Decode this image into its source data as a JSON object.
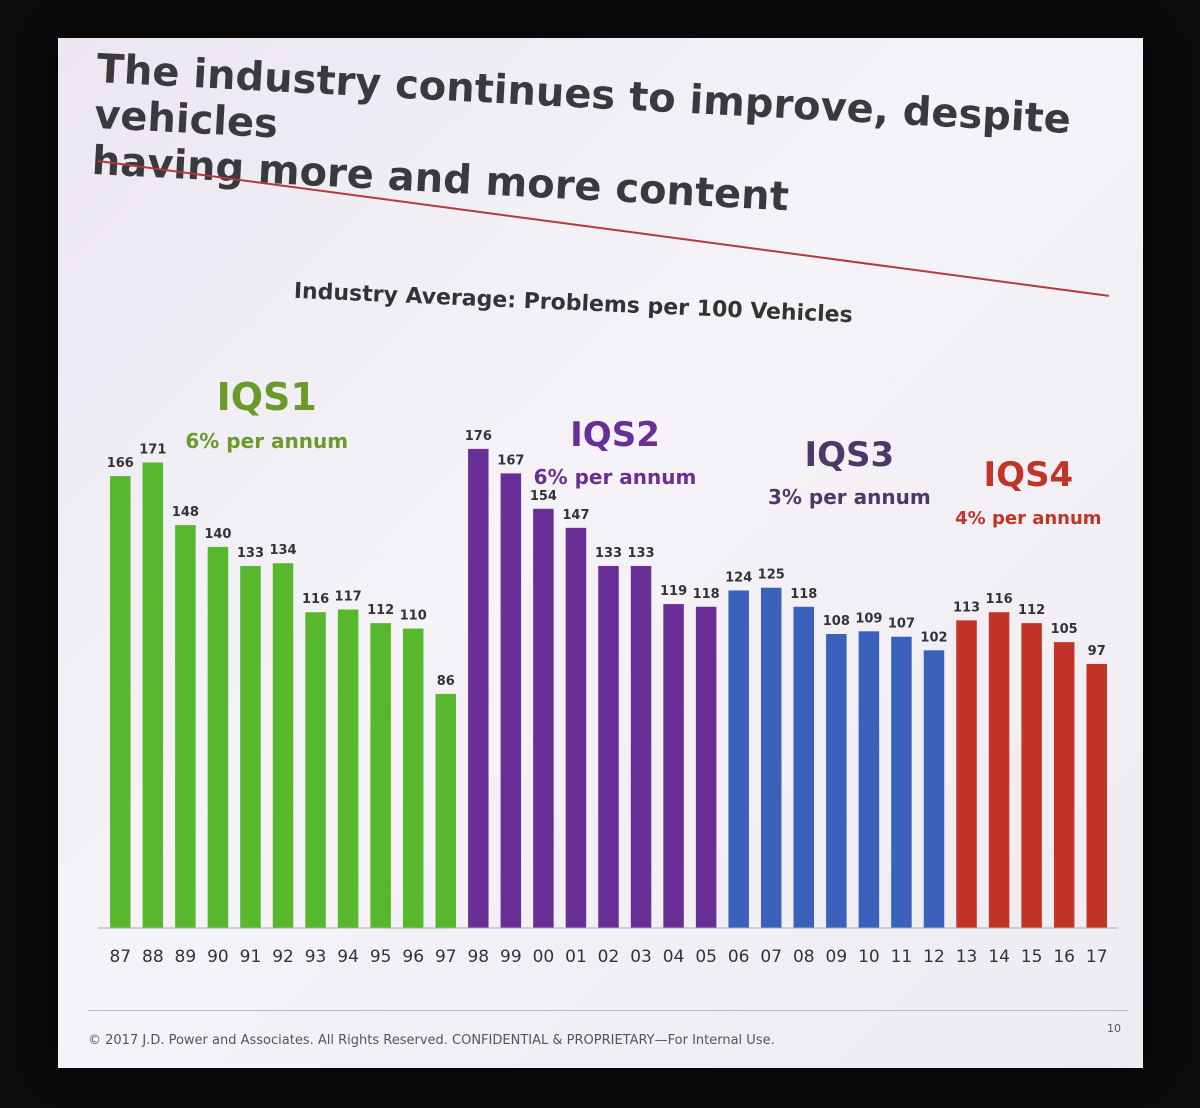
{
  "slide": {
    "headline_line1": "The industry continues to improve, despite vehicles",
    "headline_line2": "having more and more content",
    "footer": "© 2017 J.D. Power and Associates. All Rights Reserved. CONFIDENTIAL & PROPRIETARY—For Internal Use.",
    "page_number": "10"
  },
  "chart_data": {
    "type": "bar",
    "title": "Industry Average: Problems per 100 Vehicles",
    "xlabel": "",
    "ylabel": "",
    "ylim": [
      0,
      180
    ],
    "grid": false,
    "categories": [
      "87",
      "88",
      "89",
      "90",
      "91",
      "92",
      "93",
      "94",
      "95",
      "96",
      "97",
      "98",
      "99",
      "00",
      "01",
      "02",
      "03",
      "04",
      "05",
      "06",
      "07",
      "08",
      "09",
      "10",
      "11",
      "12",
      "13",
      "14",
      "15",
      "16",
      "17"
    ],
    "values": [
      166,
      171,
      148,
      140,
      133,
      134,
      116,
      117,
      112,
      110,
      86,
      176,
      167,
      154,
      147,
      133,
      133,
      119,
      118,
      124,
      125,
      118,
      108,
      109,
      107,
      102,
      113,
      116,
      112,
      105,
      97
    ],
    "groups": [
      {
        "name": "IQS1",
        "subtitle": "6% per annum",
        "from": 0,
        "to": 10,
        "color": "#57b82e",
        "label_color": "#6a9a2a"
      },
      {
        "name": "IQS2",
        "subtitle": "6% per annum",
        "from": 11,
        "to": 18,
        "color": "#6a2f96",
        "label_color": "#6a2f96"
      },
      {
        "name": "IQS3",
        "subtitle": "3% per annum",
        "from": 19,
        "to": 25,
        "color": "#3a62bb",
        "label_color": "#4a3a6a"
      },
      {
        "name": "IQS4",
        "subtitle": "4% per annum",
        "from": 26,
        "to": 30,
        "color": "#c23328",
        "label_color": "#c23328"
      }
    ]
  }
}
